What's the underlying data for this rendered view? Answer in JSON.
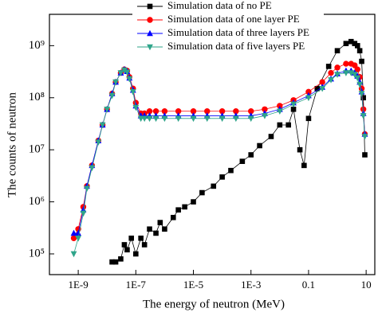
{
  "chart_data": {
    "type": "line",
    "x_label": "The energy of neutron (MeV)",
    "y_label": "The counts of neutron",
    "xlim": [
      1e-10,
      20
    ],
    "ylim": [
      40000,
      4000000000
    ],
    "x_log": true,
    "y_log": true,
    "legend": "top",
    "xticks": [
      {
        "value": 1e-09,
        "label": "1E-9"
      },
      {
        "value": 1e-07,
        "label": "1E-7"
      },
      {
        "value": 1e-05,
        "label": "1E-5"
      },
      {
        "value": 0.001,
        "label": "1E-3"
      },
      0.1,
      10
    ],
    "yticks": [
      {
        "value": 100000,
        "label": "10⁵"
      },
      {
        "value": 1000000,
        "label": "10⁶"
      },
      {
        "value": 10000000,
        "label": "10⁷"
      },
      {
        "value": 100000000,
        "label": "10⁸"
      },
      {
        "value": 1000000000,
        "label": "10⁹"
      }
    ],
    "series": [
      {
        "name": "Simulation data of no PE",
        "color": "#000000",
        "marker": "square",
        "x": [
          1.5e-08,
          2e-08,
          3e-08,
          4e-08,
          5e-08,
          7e-08,
          1e-07,
          1.5e-07,
          2e-07,
          3e-07,
          5e-07,
          7e-07,
          1e-06,
          2e-06,
          3e-06,
          5e-06,
          1e-05,
          2e-05,
          5e-05,
          0.0001,
          0.0002,
          0.0005,
          0.001,
          0.002,
          0.005,
          0.01,
          0.02,
          0.03,
          0.05,
          0.07,
          0.1,
          0.2,
          0.5,
          1,
          2,
          3,
          4,
          5,
          6,
          7,
          8,
          9
        ],
        "values": [
          70000,
          70000,
          80000,
          150000,
          120000,
          200000,
          100000,
          200000,
          150000,
          300000,
          250000,
          400000,
          300000,
          500000,
          700000,
          800000,
          1000000,
          1500000,
          2000000,
          3000000,
          4000000,
          6000000,
          8000000,
          12000000,
          18000000,
          30000000,
          30000000,
          60000000,
          10000000,
          5000000,
          40000000,
          150000000,
          400000000,
          800000000,
          1100000000,
          1200000000,
          1100000000,
          1000000000,
          800000000,
          500000000,
          100000000,
          8000000
        ]
      },
      {
        "name": "Simulation data of one layer PE",
        "color": "#ff0000",
        "marker": "circle",
        "x": [
          7e-10,
          1e-09,
          1.5e-09,
          2e-09,
          3e-09,
          5e-09,
          7e-09,
          1e-08,
          1.5e-08,
          2e-08,
          3e-08,
          4e-08,
          5e-08,
          6e-08,
          8e-08,
          1e-07,
          1.5e-07,
          2e-07,
          3e-07,
          5e-07,
          1e-06,
          3e-06,
          1e-05,
          3e-05,
          0.0001,
          0.0003,
          0.001,
          0.003,
          0.01,
          0.03,
          0.1,
          0.3,
          0.6,
          1,
          2,
          3,
          4,
          5,
          6,
          7,
          8,
          9
        ],
        "values": [
          200000,
          300000,
          800000,
          2000000,
          5000000,
          15000000,
          30000000,
          60000000,
          120000000,
          200000000,
          300000000,
          350000000,
          330000000,
          250000000,
          150000000,
          80000000,
          50000000,
          50000000,
          55000000,
          55000000,
          55000000,
          55000000,
          55000000,
          55000000,
          55000000,
          55000000,
          55000000,
          60000000,
          70000000,
          90000000,
          130000000,
          200000000,
          300000000,
          380000000,
          450000000,
          450000000,
          420000000,
          350000000,
          250000000,
          150000000,
          60000000,
          20000000
        ]
      },
      {
        "name": "Simulation data of three layers PE",
        "color": "#0000ff",
        "marker": "triangle-up",
        "x": [
          7e-10,
          1e-09,
          1.5e-09,
          2e-09,
          3e-09,
          5e-09,
          7e-09,
          1e-08,
          1.5e-08,
          2e-08,
          3e-08,
          4e-08,
          5e-08,
          6e-08,
          8e-08,
          1e-07,
          1.5e-07,
          2e-07,
          3e-07,
          5e-07,
          1e-06,
          3e-06,
          1e-05,
          3e-05,
          0.0001,
          0.0003,
          0.001,
          0.003,
          0.01,
          0.03,
          0.1,
          0.3,
          0.6,
          1,
          2,
          3,
          4,
          5,
          6,
          7,
          8,
          9
        ],
        "values": [
          250000,
          250000,
          700000,
          2000000,
          5000000,
          15000000,
          30000000,
          60000000,
          120000000,
          200000000,
          300000000,
          350000000,
          320000000,
          240000000,
          140000000,
          70000000,
          45000000,
          45000000,
          45000000,
          45000000,
          45000000,
          45000000,
          45000000,
          45000000,
          45000000,
          45000000,
          45000000,
          50000000,
          60000000,
          80000000,
          110000000,
          160000000,
          230000000,
          290000000,
          330000000,
          330000000,
          300000000,
          260000000,
          200000000,
          130000000,
          50000000,
          20000000
        ]
      },
      {
        "name": "Simulation data of five layers PE",
        "color": "#2fa58a",
        "marker": "triangle-down",
        "x": [
          7e-10,
          1e-09,
          1.5e-09,
          2e-09,
          3e-09,
          5e-09,
          7e-09,
          1e-08,
          1.5e-08,
          2e-08,
          3e-08,
          4e-08,
          5e-08,
          6e-08,
          8e-08,
          1e-07,
          1.5e-07,
          2e-07,
          3e-07,
          5e-07,
          1e-06,
          3e-06,
          1e-05,
          3e-05,
          0.0001,
          0.0003,
          0.001,
          0.003,
          0.01,
          0.03,
          0.1,
          0.3,
          0.6,
          1,
          2,
          3,
          4,
          5,
          6,
          7,
          8,
          9
        ],
        "values": [
          100000,
          200000,
          600000,
          1800000,
          4500000,
          14000000,
          30000000,
          60000000,
          110000000,
          200000000,
          300000000,
          340000000,
          310000000,
          230000000,
          130000000,
          65000000,
          40000000,
          40000000,
          40000000,
          40000000,
          40000000,
          40000000,
          40000000,
          40000000,
          40000000,
          40000000,
          40000000,
          45000000,
          55000000,
          75000000,
          100000000,
          150000000,
          220000000,
          280000000,
          300000000,
          300000000,
          280000000,
          240000000,
          180000000,
          120000000,
          45000000,
          18000000
        ]
      }
    ]
  }
}
